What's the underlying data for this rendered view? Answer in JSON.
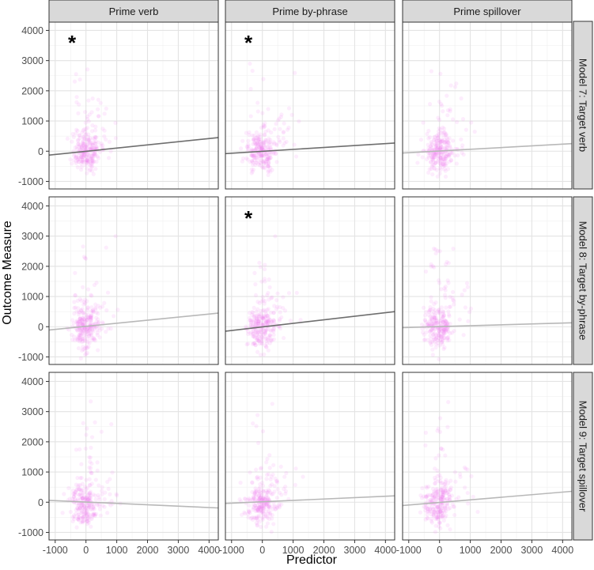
{
  "chart_data": {
    "type": "scatter",
    "xlabel": "Predictor",
    "ylabel": "Outcome Measure",
    "xlim": [
      -1200,
      4300
    ],
    "ylim": [
      -1250,
      4300
    ],
    "x_ticks": [
      -1000,
      0,
      1000,
      2000,
      3000,
      4000
    ],
    "x_tick_labels": [
      "-1000",
      "0",
      "1000",
      "2000",
      "3000",
      "4000"
    ],
    "y_ticks": [
      -1000,
      0,
      1000,
      2000,
      3000,
      4000
    ],
    "y_tick_labels": [
      "-1000",
      "0",
      "1000",
      "2000",
      "3000",
      "4000"
    ],
    "grid": true,
    "point_color": "#ee82ee",
    "significance_marker": "*",
    "col_labels": [
      "Prime verb",
      "Prime by-phrase",
      "Prime spillover"
    ],
    "row_labels": [
      "Model 7: Target verb",
      "Model 8: Target by-phrase",
      "Model 9: Target spillover"
    ],
    "facets": [
      {
        "row": 0,
        "col": 0,
        "line": {
          "x": [
            -1200,
            4300
          ],
          "y": [
            -130,
            450
          ]
        },
        "line_color": "#6e6e6e",
        "significant": true
      },
      {
        "row": 0,
        "col": 1,
        "line": {
          "x": [
            -1200,
            4300
          ],
          "y": [
            -80,
            270
          ]
        },
        "line_color": "#6e6e6e",
        "significant": true
      },
      {
        "row": 0,
        "col": 2,
        "line": {
          "x": [
            -1200,
            4300
          ],
          "y": [
            -60,
            250
          ]
        },
        "line_color": "#b8b8b8",
        "significant": false
      },
      {
        "row": 1,
        "col": 0,
        "line": {
          "x": [
            -1200,
            4300
          ],
          "y": [
            -110,
            450
          ]
        },
        "line_color": "#b8b8b8",
        "significant": false
      },
      {
        "row": 1,
        "col": 1,
        "line": {
          "x": [
            -1200,
            4300
          ],
          "y": [
            -150,
            500
          ]
        },
        "line_color": "#6e6e6e",
        "significant": true
      },
      {
        "row": 1,
        "col": 2,
        "line": {
          "x": [
            -1200,
            4300
          ],
          "y": [
            -30,
            130
          ]
        },
        "line_color": "#b8b8b8",
        "significant": false
      },
      {
        "row": 2,
        "col": 0,
        "line": {
          "x": [
            -1200,
            4300
          ],
          "y": [
            60,
            -190
          ]
        },
        "line_color": "#b8b8b8",
        "significant": false
      },
      {
        "row": 2,
        "col": 1,
        "line": {
          "x": [
            -1200,
            4300
          ],
          "y": [
            -40,
            210
          ]
        },
        "line_color": "#b8b8b8",
        "significant": false
      },
      {
        "row": 2,
        "col": 2,
        "line": {
          "x": [
            -1200,
            4300
          ],
          "y": [
            -110,
            360
          ]
        },
        "line_color": "#b8b8b8",
        "significant": false
      }
    ]
  }
}
